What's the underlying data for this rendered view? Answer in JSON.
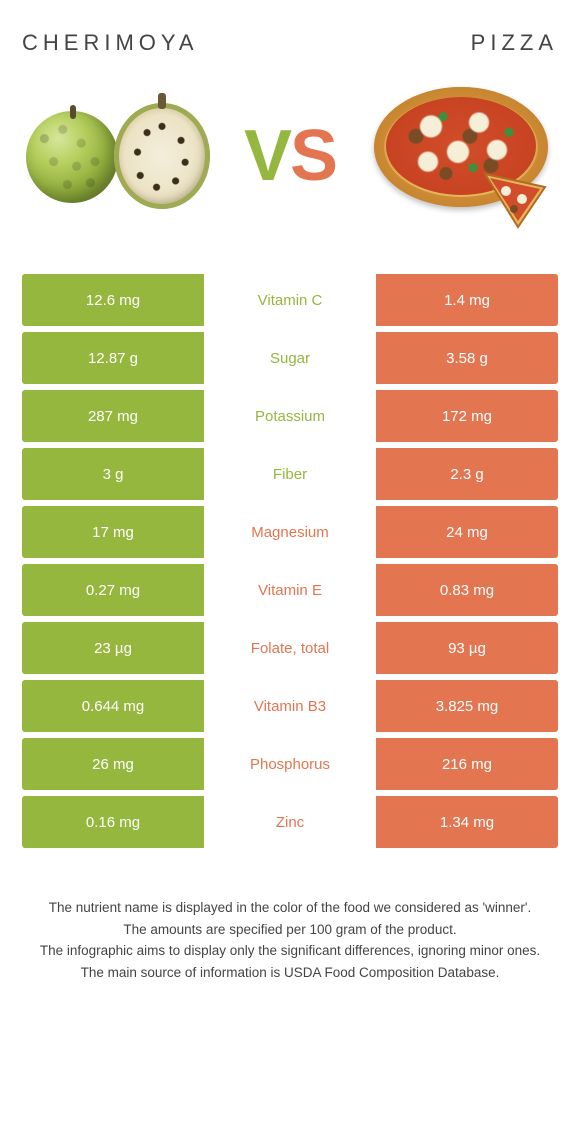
{
  "colors": {
    "green": "#95b73e",
    "orange": "#e47551",
    "text": "#444444",
    "white": "#ffffff"
  },
  "header": {
    "left_title": "CHERIMOYA",
    "right_title": "PIZZA",
    "vs_v": "V",
    "vs_s": "S"
  },
  "rows": [
    {
      "name": "Vitamin C",
      "left": "12.6 mg",
      "right": "1.4 mg",
      "winner": "left"
    },
    {
      "name": "Sugar",
      "left": "12.87 g",
      "right": "3.58 g",
      "winner": "left"
    },
    {
      "name": "Potassium",
      "left": "287 mg",
      "right": "172 mg",
      "winner": "left"
    },
    {
      "name": "Fiber",
      "left": "3 g",
      "right": "2.3 g",
      "winner": "left"
    },
    {
      "name": "Magnesium",
      "left": "17 mg",
      "right": "24 mg",
      "winner": "right"
    },
    {
      "name": "Vitamin E",
      "left": "0.27 mg",
      "right": "0.83 mg",
      "winner": "right"
    },
    {
      "name": "Folate, total",
      "left": "23 µg",
      "right": "93 µg",
      "winner": "right"
    },
    {
      "name": "Vitamin B3",
      "left": "0.644 mg",
      "right": "3.825 mg",
      "winner": "right"
    },
    {
      "name": "Phosphorus",
      "left": "26 mg",
      "right": "216 mg",
      "winner": "right"
    },
    {
      "name": "Zinc",
      "left": "0.16 mg",
      "right": "1.34 mg",
      "winner": "right"
    }
  ],
  "footer": {
    "line1": "The nutrient name is displayed in the color of the food we considered as 'winner'.",
    "line2": "The amounts are specified per 100 gram of the product.",
    "line3": "The infographic aims to display only the significant differences, ignoring minor ones.",
    "line4": "The main source of information is USDA Food Composition Database."
  }
}
